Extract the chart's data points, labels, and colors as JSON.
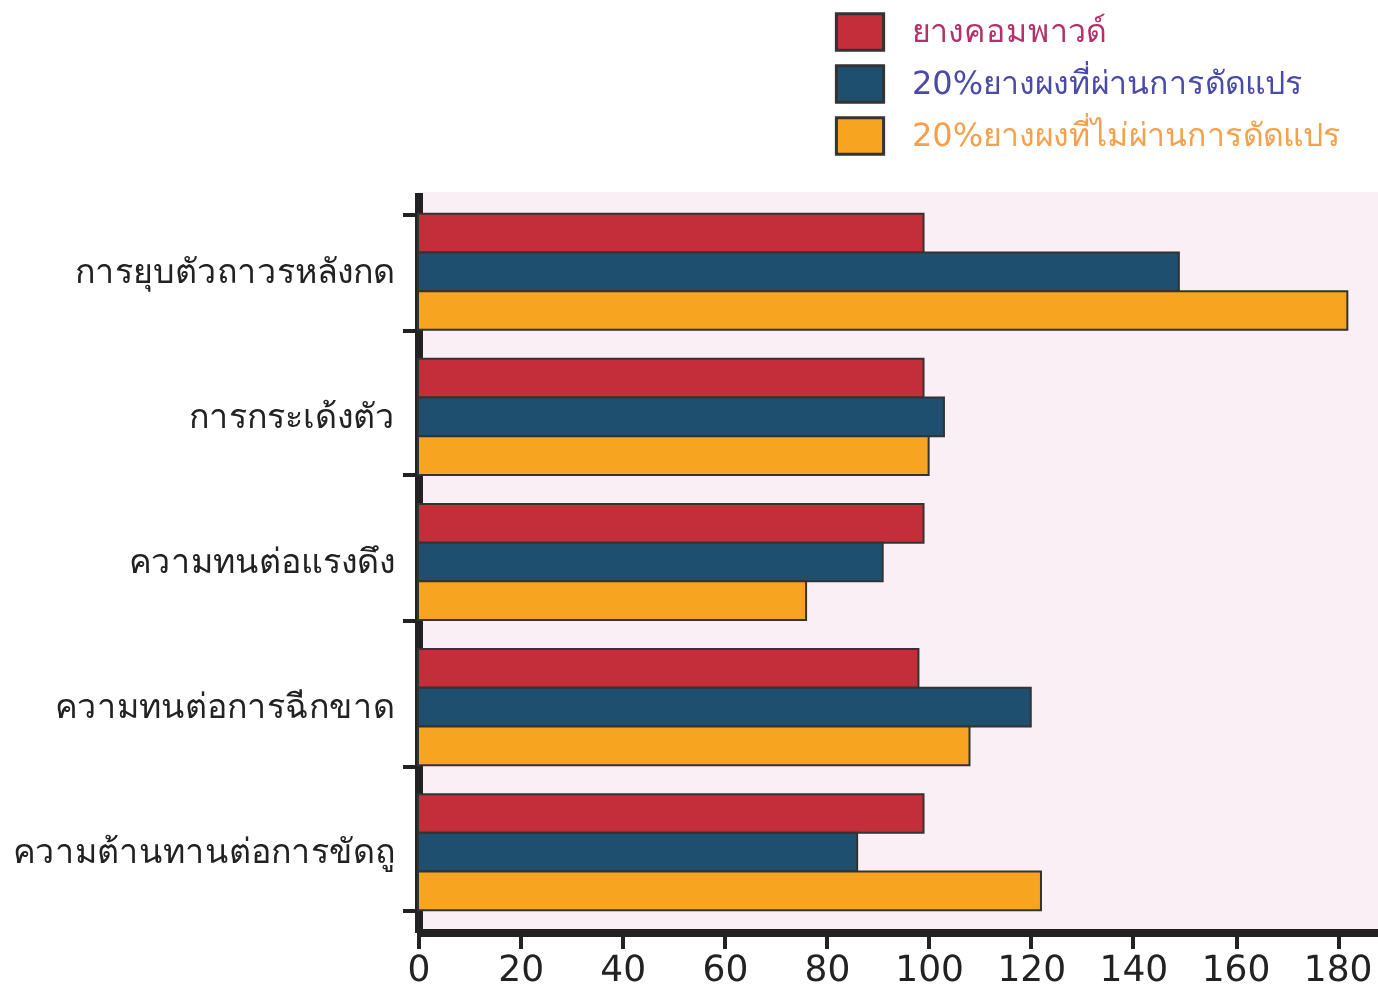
{
  "chart_data": {
    "type": "bar",
    "orientation": "horizontal",
    "categories": [
      "การยุบตัวถาวรหลังกด",
      "การกระเด้งตัว",
      "ความทนต่อแรงดึง",
      "ความทนต่อการฉีกขาด",
      "ความต้านทานต่อการขัดถู"
    ],
    "series": [
      {
        "name": "ยางคอมพาวด์",
        "color": "#c42e3a",
        "values": [
          99,
          99,
          99,
          98,
          99
        ]
      },
      {
        "name": "20%ยางผงที่ผ่านการดัดแปร",
        "color": "#1e4f6e",
        "values": [
          149,
          103,
          91,
          120,
          86
        ]
      },
      {
        "name": "20%ยางผงที่ไม่ผ่านการดัดแปร",
        "color": "#f7a520",
        "values": [
          182,
          100,
          76,
          108,
          122
        ]
      }
    ],
    "xlim": [
      0,
      188
    ],
    "xticks": [
      0,
      20,
      40,
      60,
      80,
      100,
      120,
      140,
      160,
      180
    ],
    "legend": "top right"
  }
}
